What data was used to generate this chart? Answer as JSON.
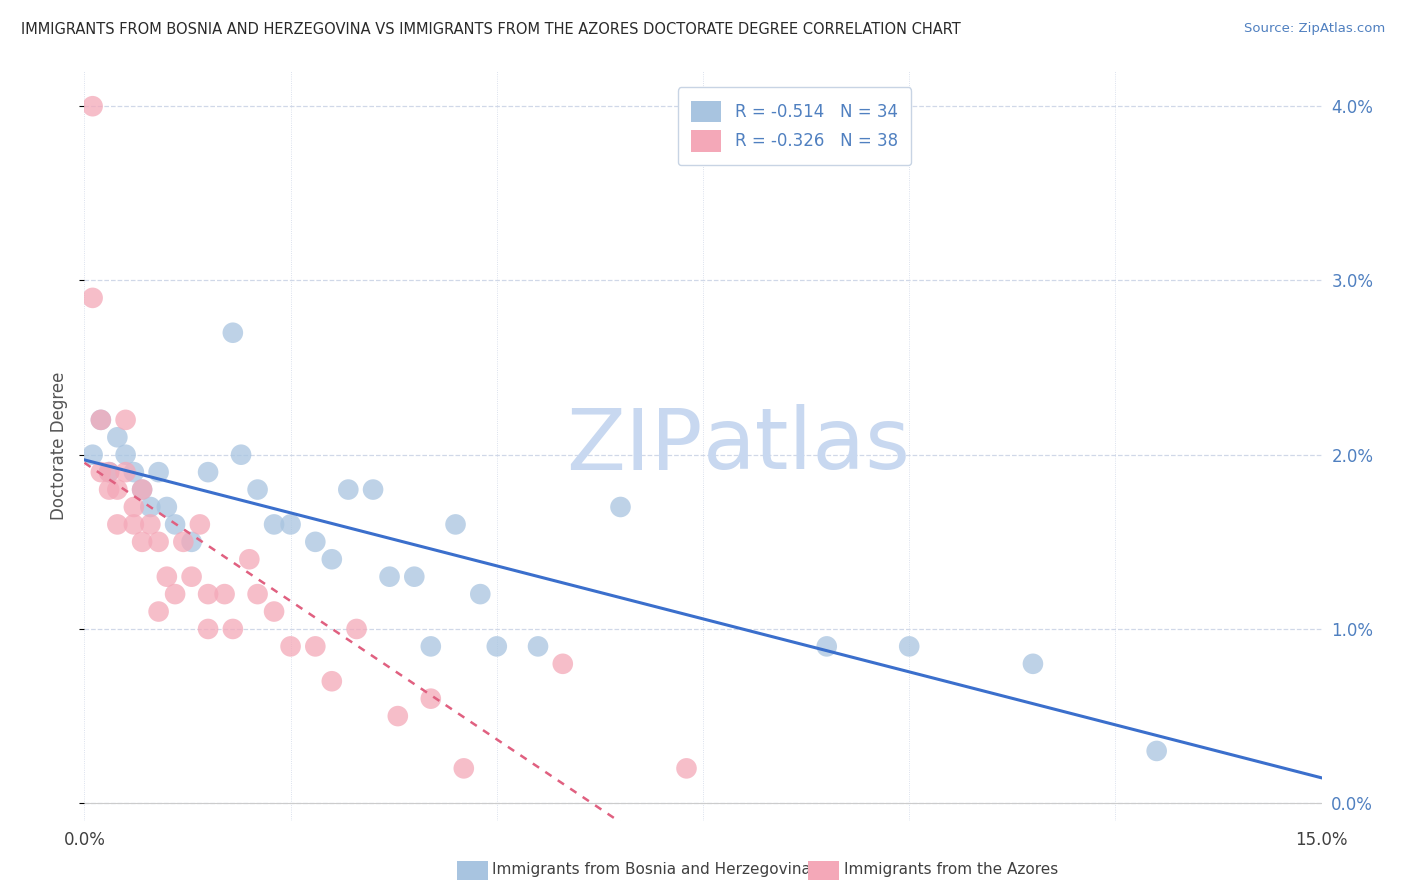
{
  "title": "IMMIGRANTS FROM BOSNIA AND HERZEGOVINA VS IMMIGRANTS FROM THE AZORES DOCTORATE DEGREE CORRELATION CHART",
  "source": "Source: ZipAtlas.com",
  "ylabel": "Doctorate Degree",
  "xlim": [
    0.0,
    0.15
  ],
  "ylim": [
    -0.001,
    0.042
  ],
  "yticks": [
    0.0,
    0.01,
    0.02,
    0.03,
    0.04
  ],
  "xticks": [
    0.0,
    0.025,
    0.05,
    0.075,
    0.1,
    0.125,
    0.15
  ],
  "legend_r1": "R = -0.514",
  "legend_n1": "N = 34",
  "legend_r2": "R = -0.326",
  "legend_n2": "N = 38",
  "blue_color": "#a8c4e0",
  "pink_color": "#f4a8b8",
  "blue_line_color": "#3b6fcc",
  "pink_line_color": "#e06080",
  "legend_text_color": "#5080c0",
  "watermark_color": "#c8d8f0",
  "blue_x": [
    0.001,
    0.002,
    0.003,
    0.004,
    0.005,
    0.006,
    0.007,
    0.008,
    0.009,
    0.01,
    0.011,
    0.013,
    0.015,
    0.018,
    0.019,
    0.021,
    0.023,
    0.025,
    0.028,
    0.03,
    0.032,
    0.035,
    0.037,
    0.04,
    0.042,
    0.045,
    0.048,
    0.05,
    0.055,
    0.065,
    0.09,
    0.1,
    0.115,
    0.13
  ],
  "blue_y": [
    0.02,
    0.022,
    0.019,
    0.021,
    0.02,
    0.019,
    0.018,
    0.017,
    0.019,
    0.017,
    0.016,
    0.015,
    0.019,
    0.027,
    0.02,
    0.018,
    0.016,
    0.016,
    0.015,
    0.014,
    0.018,
    0.018,
    0.013,
    0.013,
    0.009,
    0.016,
    0.012,
    0.009,
    0.009,
    0.017,
    0.009,
    0.009,
    0.008,
    0.003
  ],
  "pink_x": [
    0.001,
    0.001,
    0.002,
    0.002,
    0.003,
    0.003,
    0.004,
    0.004,
    0.005,
    0.005,
    0.006,
    0.006,
    0.007,
    0.007,
    0.008,
    0.009,
    0.009,
    0.01,
    0.011,
    0.012,
    0.013,
    0.014,
    0.015,
    0.015,
    0.017,
    0.018,
    0.02,
    0.021,
    0.023,
    0.025,
    0.028,
    0.03,
    0.033,
    0.038,
    0.042,
    0.046,
    0.058,
    0.073
  ],
  "pink_y": [
    0.04,
    0.029,
    0.022,
    0.019,
    0.019,
    0.018,
    0.018,
    0.016,
    0.022,
    0.019,
    0.017,
    0.016,
    0.018,
    0.015,
    0.016,
    0.015,
    0.011,
    0.013,
    0.012,
    0.015,
    0.013,
    0.016,
    0.012,
    0.01,
    0.012,
    0.01,
    0.014,
    0.012,
    0.011,
    0.009,
    0.009,
    0.007,
    0.01,
    0.005,
    0.006,
    0.002,
    0.008,
    0.002
  ],
  "background_color": "#ffffff",
  "grid_color": "#d0d8e8"
}
